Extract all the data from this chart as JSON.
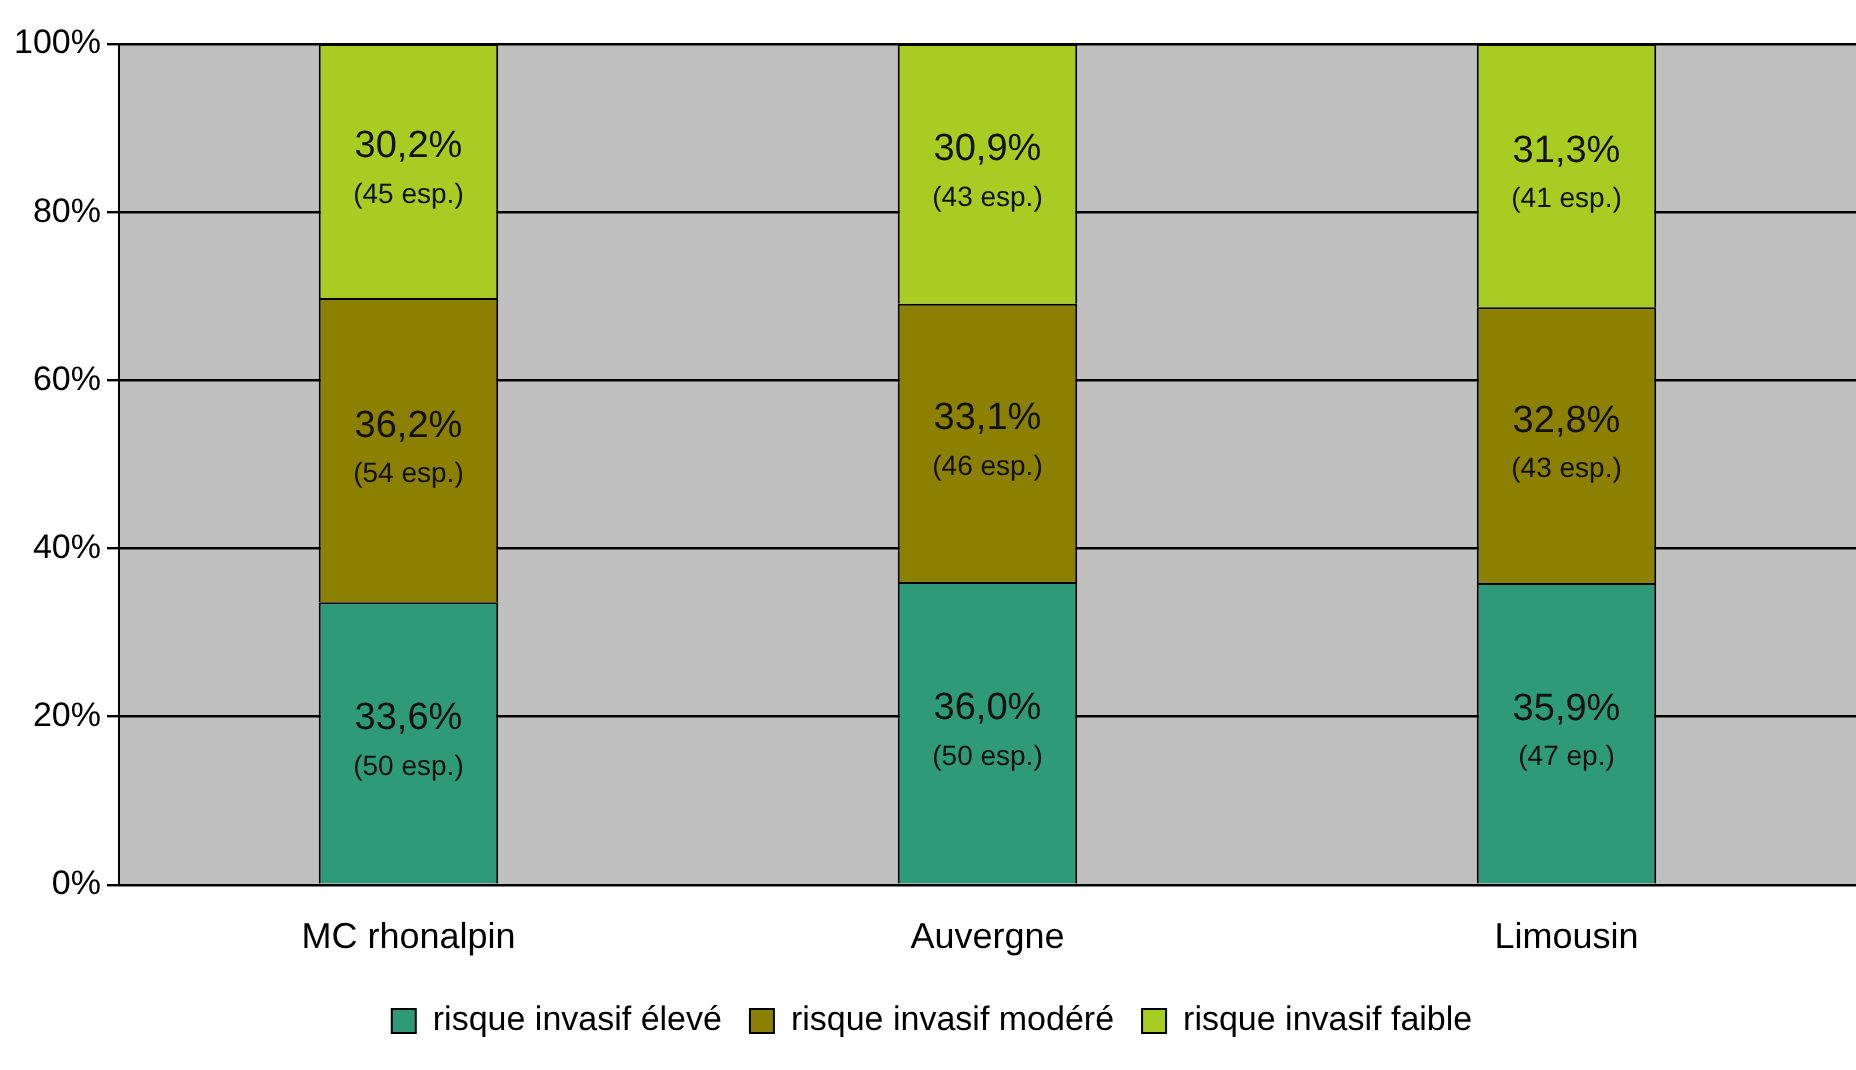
{
  "chart_data": {
    "type": "bar",
    "stacked": true,
    "categories": [
      "MC rhonalpin",
      "Auvergne",
      "Limousin"
    ],
    "series": [
      {
        "name": "risque invasif élevé",
        "color": "#2f9a78",
        "values": [
          33.6,
          36.0,
          35.9
        ],
        "value_labels": [
          "33,6%\n(50 esp.)",
          "36,0%\n(50 esp.)",
          "35,9%\n(47 ep.)"
        ]
      },
      {
        "name": "risque invasif modéré",
        "color": "#8c8000",
        "values": [
          36.2,
          33.1,
          32.8
        ],
        "value_labels": [
          "36,2%\n(54 esp.)",
          "33,1%\n(46 esp.)",
          "32,8%\n(43 esp.)"
        ]
      },
      {
        "name": "risque invasif faible",
        "color": "#a8cc22",
        "values": [
          30.2,
          30.9,
          31.3
        ],
        "value_labels": [
          "30,2%\n(45 esp.)",
          "30,9%\n(43 esp.)",
          "31,3%\n(41 esp.)"
        ]
      }
    ],
    "ylim": [
      0,
      100
    ],
    "yticks": [
      {
        "value": 0,
        "label": "0%"
      },
      {
        "value": 20,
        "label": "20%"
      },
      {
        "value": 40,
        "label": "40%"
      },
      {
        "value": 60,
        "label": "60%"
      },
      {
        "value": 80,
        "label": "80%"
      },
      {
        "value": 100,
        "label": "100%"
      }
    ],
    "grid": "y",
    "legend": "bottom"
  }
}
